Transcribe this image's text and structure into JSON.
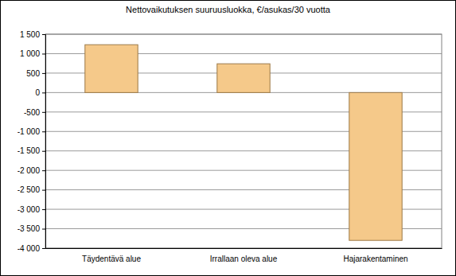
{
  "chart_data": {
    "type": "bar",
    "title": "Nettovaikutuksen suuruusluokka, €/asukas/30 vuotta",
    "categories": [
      "Täydentävä alue",
      "Irrallaan oleva alue",
      "Hajarakentaminen"
    ],
    "values": [
      1230,
      740,
      -3800
    ],
    "color": "#f5c98a",
    "ylim": [
      -4000,
      1500
    ],
    "yticks": [
      {
        "value": 1500,
        "label": "1 500"
      },
      {
        "value": 1000,
        "label": "1 000"
      },
      500,
      0,
      -500,
      {
        "value": -1000,
        "label": "-1 000"
      },
      {
        "value": -1500,
        "label": "-1 500"
      },
      {
        "value": -2000,
        "label": "-2 000"
      },
      {
        "value": -2500,
        "label": "-2 500"
      },
      {
        "value": -3000,
        "label": "-3 000"
      },
      {
        "value": -3500,
        "label": "-3 500"
      },
      {
        "value": -4000,
        "label": "-4 000"
      }
    ],
    "grid": true
  }
}
